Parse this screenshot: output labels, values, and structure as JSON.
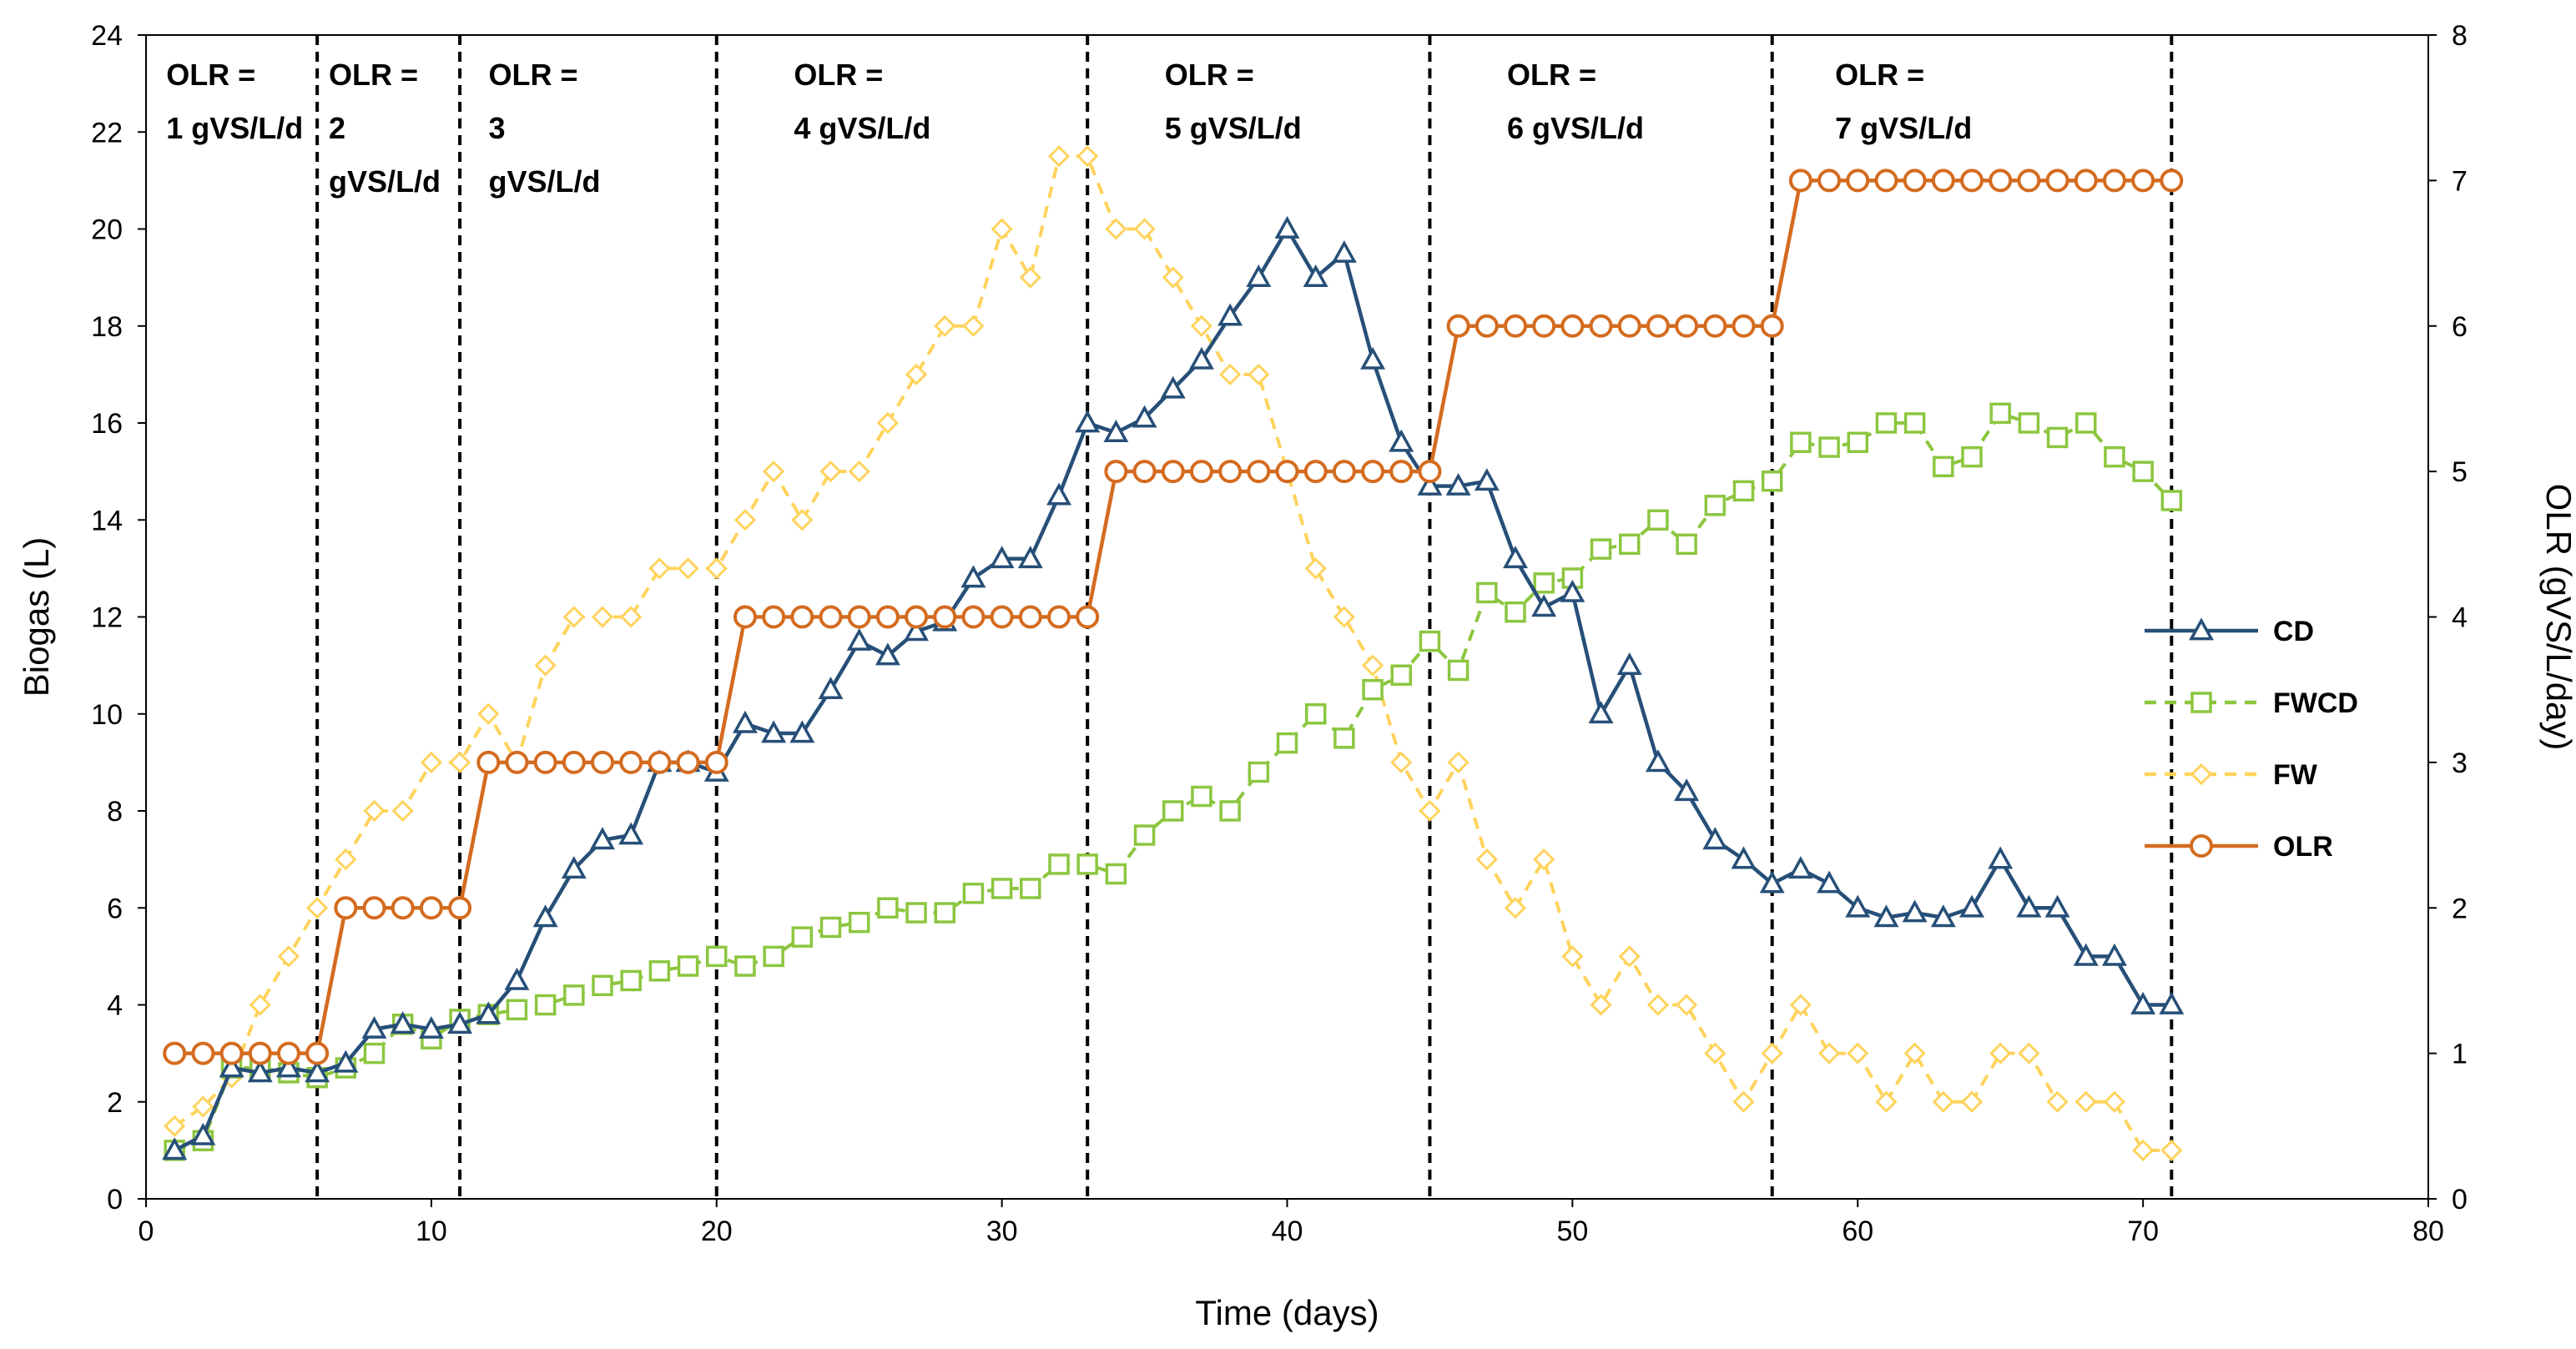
{
  "chart_data": {
    "type": "line",
    "xlabel": "Time (days)",
    "ylabel": "Biogas (L)",
    "y2label": "OLR (gVS/L/day)",
    "xlim": [
      0,
      80
    ],
    "ylim": [
      0,
      24
    ],
    "y2lim": [
      0,
      8
    ],
    "xticks": [
      "0",
      "10",
      "20",
      "30",
      "40",
      "50",
      "60",
      "70",
      "80"
    ],
    "yticks": [
      "0",
      "2",
      "4",
      "6",
      "8",
      "10",
      "12",
      "14",
      "16",
      "18",
      "20",
      "22",
      "24"
    ],
    "y2ticks": [
      "0",
      "1",
      "2",
      "3",
      "4",
      "5",
      "6",
      "7",
      "8"
    ],
    "grid": false,
    "legend_position": "right",
    "phase_boundaries": [
      6,
      11,
      20,
      33,
      45,
      57,
      71
    ],
    "phase_labels": [
      {
        "x": 1,
        "lines": [
          "OLR =",
          "1 gVS/L/d"
        ]
      },
      {
        "x": 6.7,
        "lines": [
          "OLR =",
          "2",
          "gVS/L/d"
        ]
      },
      {
        "x": 12.3,
        "lines": [
          "OLR =",
          "3",
          "gVS/L/d"
        ]
      },
      {
        "x": 23,
        "lines": [
          "OLR =",
          "4 gVS/L/d"
        ]
      },
      {
        "x": 36,
        "lines": [
          "OLR =",
          "5 gVS/L/d"
        ]
      },
      {
        "x": 48,
        "lines": [
          "OLR =",
          "6 gVS/L/d"
        ]
      },
      {
        "x": 59.5,
        "lines": [
          "OLR =",
          "7 gVS/L/d"
        ]
      }
    ],
    "series": [
      {
        "name": "CD",
        "axis": "left",
        "color": "#264f78",
        "marker": "triangle",
        "dash": false,
        "x": [
          1,
          2,
          3,
          4,
          5,
          6,
          7,
          8,
          9,
          10,
          11,
          12,
          13,
          14,
          15,
          16,
          17,
          18,
          19,
          20,
          21,
          22,
          23,
          24,
          25,
          26,
          27,
          28,
          29,
          30,
          31,
          32,
          33,
          34,
          35,
          36,
          37,
          38,
          39,
          40,
          41,
          42,
          43,
          44,
          45,
          46,
          47,
          48,
          49,
          50,
          51,
          52,
          53,
          54,
          55,
          56,
          57,
          58,
          59,
          60,
          61,
          62,
          63,
          64,
          65,
          66,
          67,
          68,
          69,
          70,
          71
        ],
        "values": [
          1.0,
          1.3,
          2.7,
          2.6,
          2.7,
          2.6,
          2.8,
          3.5,
          3.6,
          3.5,
          3.6,
          3.8,
          4.5,
          5.8,
          6.8,
          7.4,
          7.5,
          9.0,
          9.0,
          8.8,
          9.8,
          9.6,
          9.6,
          10.5,
          11.5,
          11.2,
          11.7,
          11.9,
          12.8,
          13.2,
          13.2,
          14.5,
          16.0,
          15.8,
          16.1,
          16.7,
          17.3,
          18.2,
          19.0,
          20.0,
          19.0,
          19.5,
          17.3,
          15.6,
          14.7,
          14.7,
          14.8,
          13.2,
          12.2,
          12.5,
          10.0,
          11.0,
          9.0,
          8.4,
          7.4,
          7.0,
          6.5,
          6.8,
          6.5,
          6.0,
          5.8,
          5.9,
          5.8,
          6.0,
          7.0,
          6.0,
          6.0,
          5.0,
          5.0,
          4.0,
          4.0
        ]
      },
      {
        "name": "FWCD",
        "axis": "left",
        "color": "#8cc63f",
        "marker": "square",
        "dash": true,
        "x": [
          1,
          2,
          3,
          4,
          5,
          6,
          7,
          8,
          9,
          10,
          11,
          12,
          13,
          14,
          15,
          16,
          17,
          18,
          19,
          20,
          21,
          22,
          23,
          24,
          25,
          26,
          27,
          28,
          29,
          30,
          31,
          32,
          33,
          34,
          35,
          36,
          37,
          38,
          39,
          40,
          41,
          42,
          43,
          44,
          45,
          46,
          47,
          48,
          49,
          50,
          51,
          52,
          53,
          54,
          55,
          56,
          57,
          58,
          59,
          60,
          61,
          62,
          63,
          64,
          65,
          66,
          67,
          68,
          69,
          70,
          71
        ],
        "values": [
          1.0,
          1.2,
          2.7,
          2.7,
          2.6,
          2.5,
          2.7,
          3.0,
          3.6,
          3.3,
          3.7,
          3.8,
          3.9,
          4.0,
          4.2,
          4.4,
          4.5,
          4.7,
          4.8,
          5.0,
          4.8,
          5.0,
          5.4,
          5.6,
          5.7,
          6.0,
          5.9,
          5.9,
          6.3,
          6.4,
          6.4,
          6.9,
          6.9,
          6.7,
          7.5,
          8.0,
          8.3,
          8.0,
          8.8,
          9.4,
          10.0,
          9.5,
          10.5,
          10.8,
          11.5,
          10.9,
          12.5,
          12.1,
          12.7,
          12.8,
          13.4,
          13.5,
          14.0,
          13.5,
          14.3,
          14.6,
          14.8,
          15.6,
          15.5,
          15.6,
          16.0,
          16.0,
          15.1,
          15.3,
          16.2,
          16.0,
          15.7,
          16.0,
          15.3,
          15.0,
          14.4
        ]
      },
      {
        "name": "FW",
        "axis": "left",
        "color": "#ffd35c",
        "marker": "diamond",
        "dash": true,
        "x": [
          1,
          2,
          3,
          4,
          5,
          6,
          7,
          8,
          9,
          10,
          11,
          12,
          13,
          14,
          15,
          16,
          17,
          18,
          19,
          20,
          21,
          22,
          23,
          24,
          25,
          26,
          27,
          28,
          29,
          30,
          31,
          32,
          33,
          34,
          35,
          36,
          37,
          38,
          39,
          40,
          41,
          42,
          43,
          44,
          45,
          46,
          47,
          48,
          49,
          50,
          51,
          52,
          53,
          54,
          55,
          56,
          57,
          58,
          59,
          60,
          61,
          62,
          63,
          64,
          65,
          66,
          67,
          68,
          69,
          70,
          71
        ],
        "values": [
          1.5,
          1.9,
          2.5,
          4.0,
          5.0,
          6.0,
          7.0,
          8.0,
          8.0,
          9.0,
          9.0,
          10.0,
          9.0,
          11.0,
          12.0,
          12.0,
          12.0,
          13.0,
          13.0,
          13.0,
          14.0,
          15.0,
          14.0,
          15.0,
          15.0,
          16.0,
          17.0,
          18.0,
          18.0,
          20.0,
          19.0,
          21.5,
          21.5,
          20.0,
          20.0,
          19.0,
          18.0,
          17.0,
          17.0,
          15.0,
          13.0,
          12.0,
          11.0,
          9.0,
          8.0,
          9.0,
          7.0,
          6.0,
          7.0,
          5.0,
          4.0,
          5.0,
          4.0,
          4.0,
          3.0,
          2.0,
          3.0,
          4.0,
          3.0,
          3.0,
          2.0,
          3.0,
          2.0,
          2.0,
          3.0,
          3.0,
          2.0,
          2.0,
          2.0,
          1.0,
          1.0
        ]
      },
      {
        "name": "OLR",
        "axis": "right",
        "color": "#d46b1f",
        "marker": "circle",
        "dash": false,
        "x": [
          1,
          2,
          3,
          4,
          5,
          6,
          7,
          8,
          9,
          10,
          11,
          12,
          13,
          14,
          15,
          16,
          17,
          18,
          19,
          20,
          21,
          22,
          23,
          24,
          25,
          26,
          27,
          28,
          29,
          30,
          31,
          32,
          33,
          34,
          35,
          36,
          37,
          38,
          39,
          40,
          41,
          42,
          43,
          44,
          45,
          46,
          47,
          48,
          49,
          50,
          51,
          52,
          53,
          54,
          55,
          56,
          57,
          58,
          59,
          60,
          61,
          62,
          63,
          64,
          65,
          66,
          67,
          68,
          69,
          70,
          71
        ],
        "values": [
          1,
          1,
          1,
          1,
          1,
          1,
          2,
          2,
          2,
          2,
          2,
          3,
          3,
          3,
          3,
          3,
          3,
          3,
          3,
          3,
          4,
          4,
          4,
          4,
          4,
          4,
          4,
          4,
          4,
          4,
          4,
          4,
          4,
          5,
          5,
          5,
          5,
          5,
          5,
          5,
          5,
          5,
          5,
          5,
          5,
          6,
          6,
          6,
          6,
          6,
          6,
          6,
          6,
          6,
          6,
          6,
          6,
          7,
          7,
          7,
          7,
          7,
          7,
          7,
          7,
          7,
          7,
          7,
          7,
          7,
          7
        ]
      }
    ]
  }
}
